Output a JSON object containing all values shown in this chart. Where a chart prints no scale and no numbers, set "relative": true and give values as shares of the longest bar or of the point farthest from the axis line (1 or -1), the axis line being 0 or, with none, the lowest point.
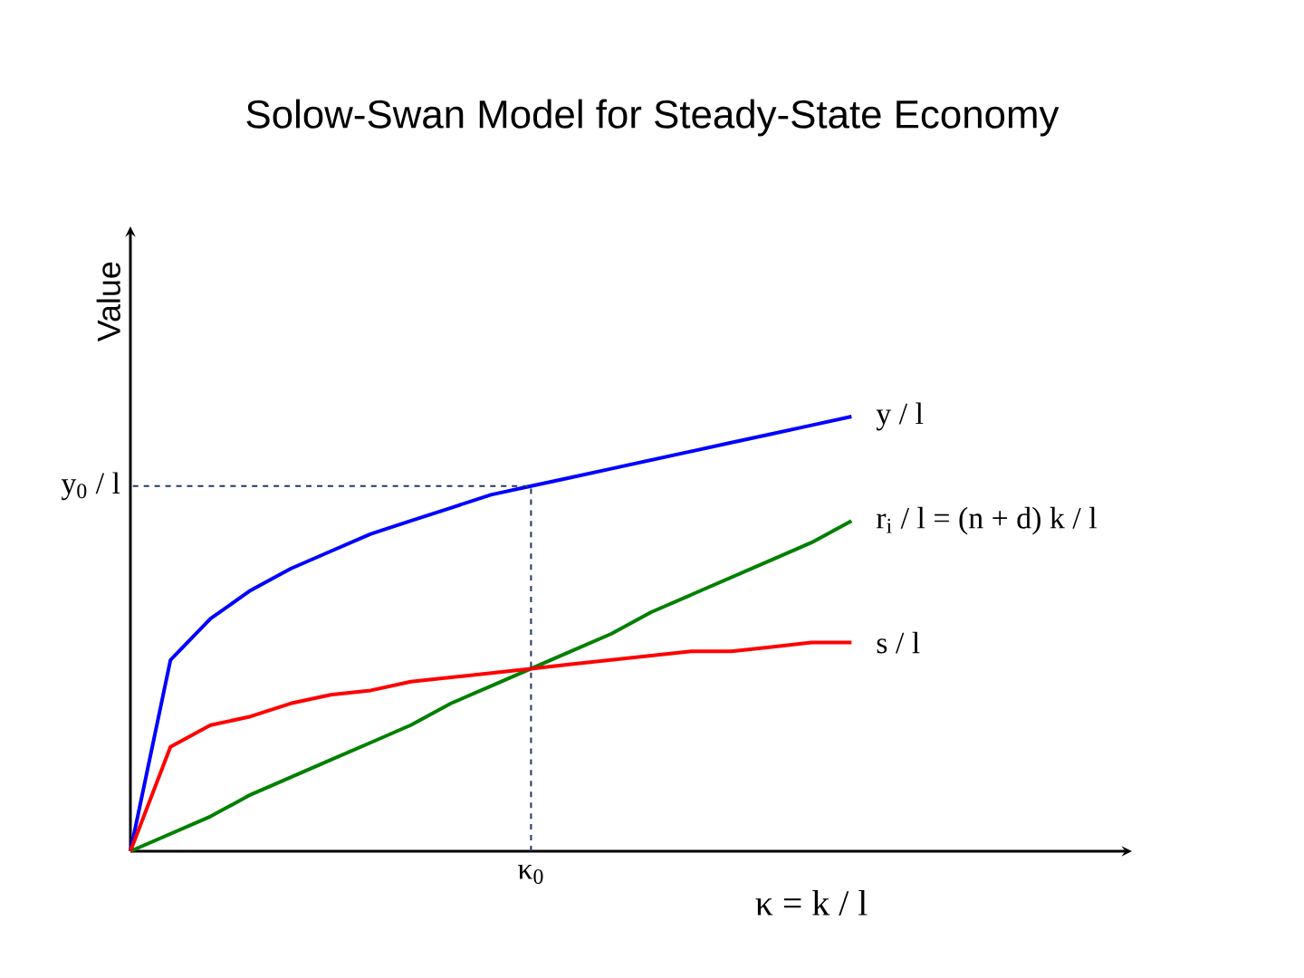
{
  "chart_data": {
    "type": "line",
    "title": "Solow-Swan Model for Steady-State Economy",
    "xlabel": "κ = k / l",
    "ylabel": "Value",
    "relative": true,
    "categories": [
      null,
      null,
      null,
      null,
      null,
      null,
      null,
      null,
      null,
      null,
      null,
      null,
      null,
      null,
      null,
      null,
      null,
      null,
      null
    ],
    "series": [
      {
        "name": "y / l",
        "color": "#0000ff",
        "values": [
          0,
          0.44,
          0.535,
          0.6,
          0.65,
          0.69,
          0.73,
          0.76,
          0.79,
          0.82,
          0.84,
          0.86,
          0.88,
          0.9,
          0.92,
          0.94,
          0.96,
          0.98,
          1.0
        ]
      },
      {
        "name": "r$_{i}$ / l  =  (n + d) k / l",
        "color": "#008000",
        "values": [
          0,
          0.04,
          0.08,
          0.13,
          0.17,
          0.21,
          0.25,
          0.29,
          0.34,
          0.38,
          0.42,
          0.46,
          0.5,
          0.55,
          0.59,
          0.63,
          0.67,
          0.71,
          0.76
        ]
      },
      {
        "name": "s / l",
        "color": "#ff0000",
        "values": [
          0,
          0.24,
          0.29,
          0.31,
          0.34,
          0.36,
          0.37,
          0.39,
          0.4,
          0.41,
          0.42,
          0.43,
          0.44,
          0.45,
          0.46,
          0.46,
          0.47,
          0.48,
          0.48
        ]
      }
    ],
    "annotations": [
      "y$_{0}$ / l",
      "κ$_{0}$"
    ]
  }
}
